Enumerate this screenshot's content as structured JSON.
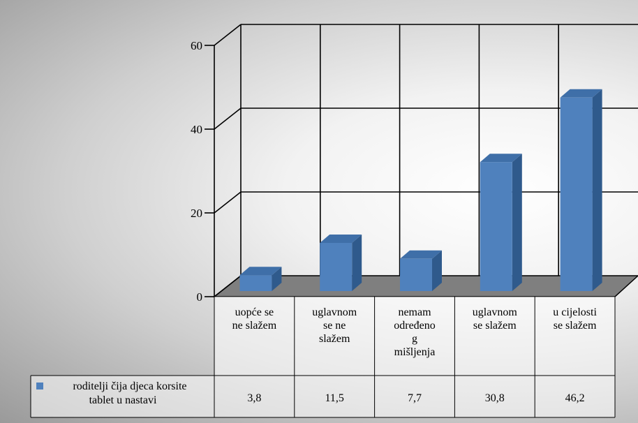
{
  "chart_data": {
    "type": "bar",
    "categories": [
      "uopće se ne slažem",
      "uglavnom se ne slažem",
      "nemam određeno mišljenja",
      "uglavnom se slažem",
      "u cijelosti se slažem"
    ],
    "category_label_lines": [
      [
        "uopće se",
        "ne slažem"
      ],
      [
        "uglavnom",
        "se ne",
        "slažem"
      ],
      [
        "nemam",
        "određeno",
        "g",
        "mišljenja"
      ],
      [
        "uglavnom",
        "se slažem"
      ],
      [
        "u cijelosti",
        "se slažem"
      ]
    ],
    "series": [
      {
        "name": "roditelji čija djeca korsite tablet u nastavi",
        "name_lines": [
          "roditelji čija djeca korsite",
          "tablet u nastavi"
        ],
        "values": [
          3.8,
          11.5,
          7.7,
          30.8,
          46.2
        ],
        "value_labels": [
          "3,8",
          "11,5",
          "7,7",
          "30,8",
          "46,2"
        ],
        "color": "#4f81bd"
      }
    ],
    "y_ticks": [
      "0",
      "20",
      "40",
      "60"
    ],
    "ylim": [
      0,
      60
    ],
    "grid": true,
    "legend": "data-table",
    "title": "",
    "xlabel": "",
    "ylabel": ""
  }
}
